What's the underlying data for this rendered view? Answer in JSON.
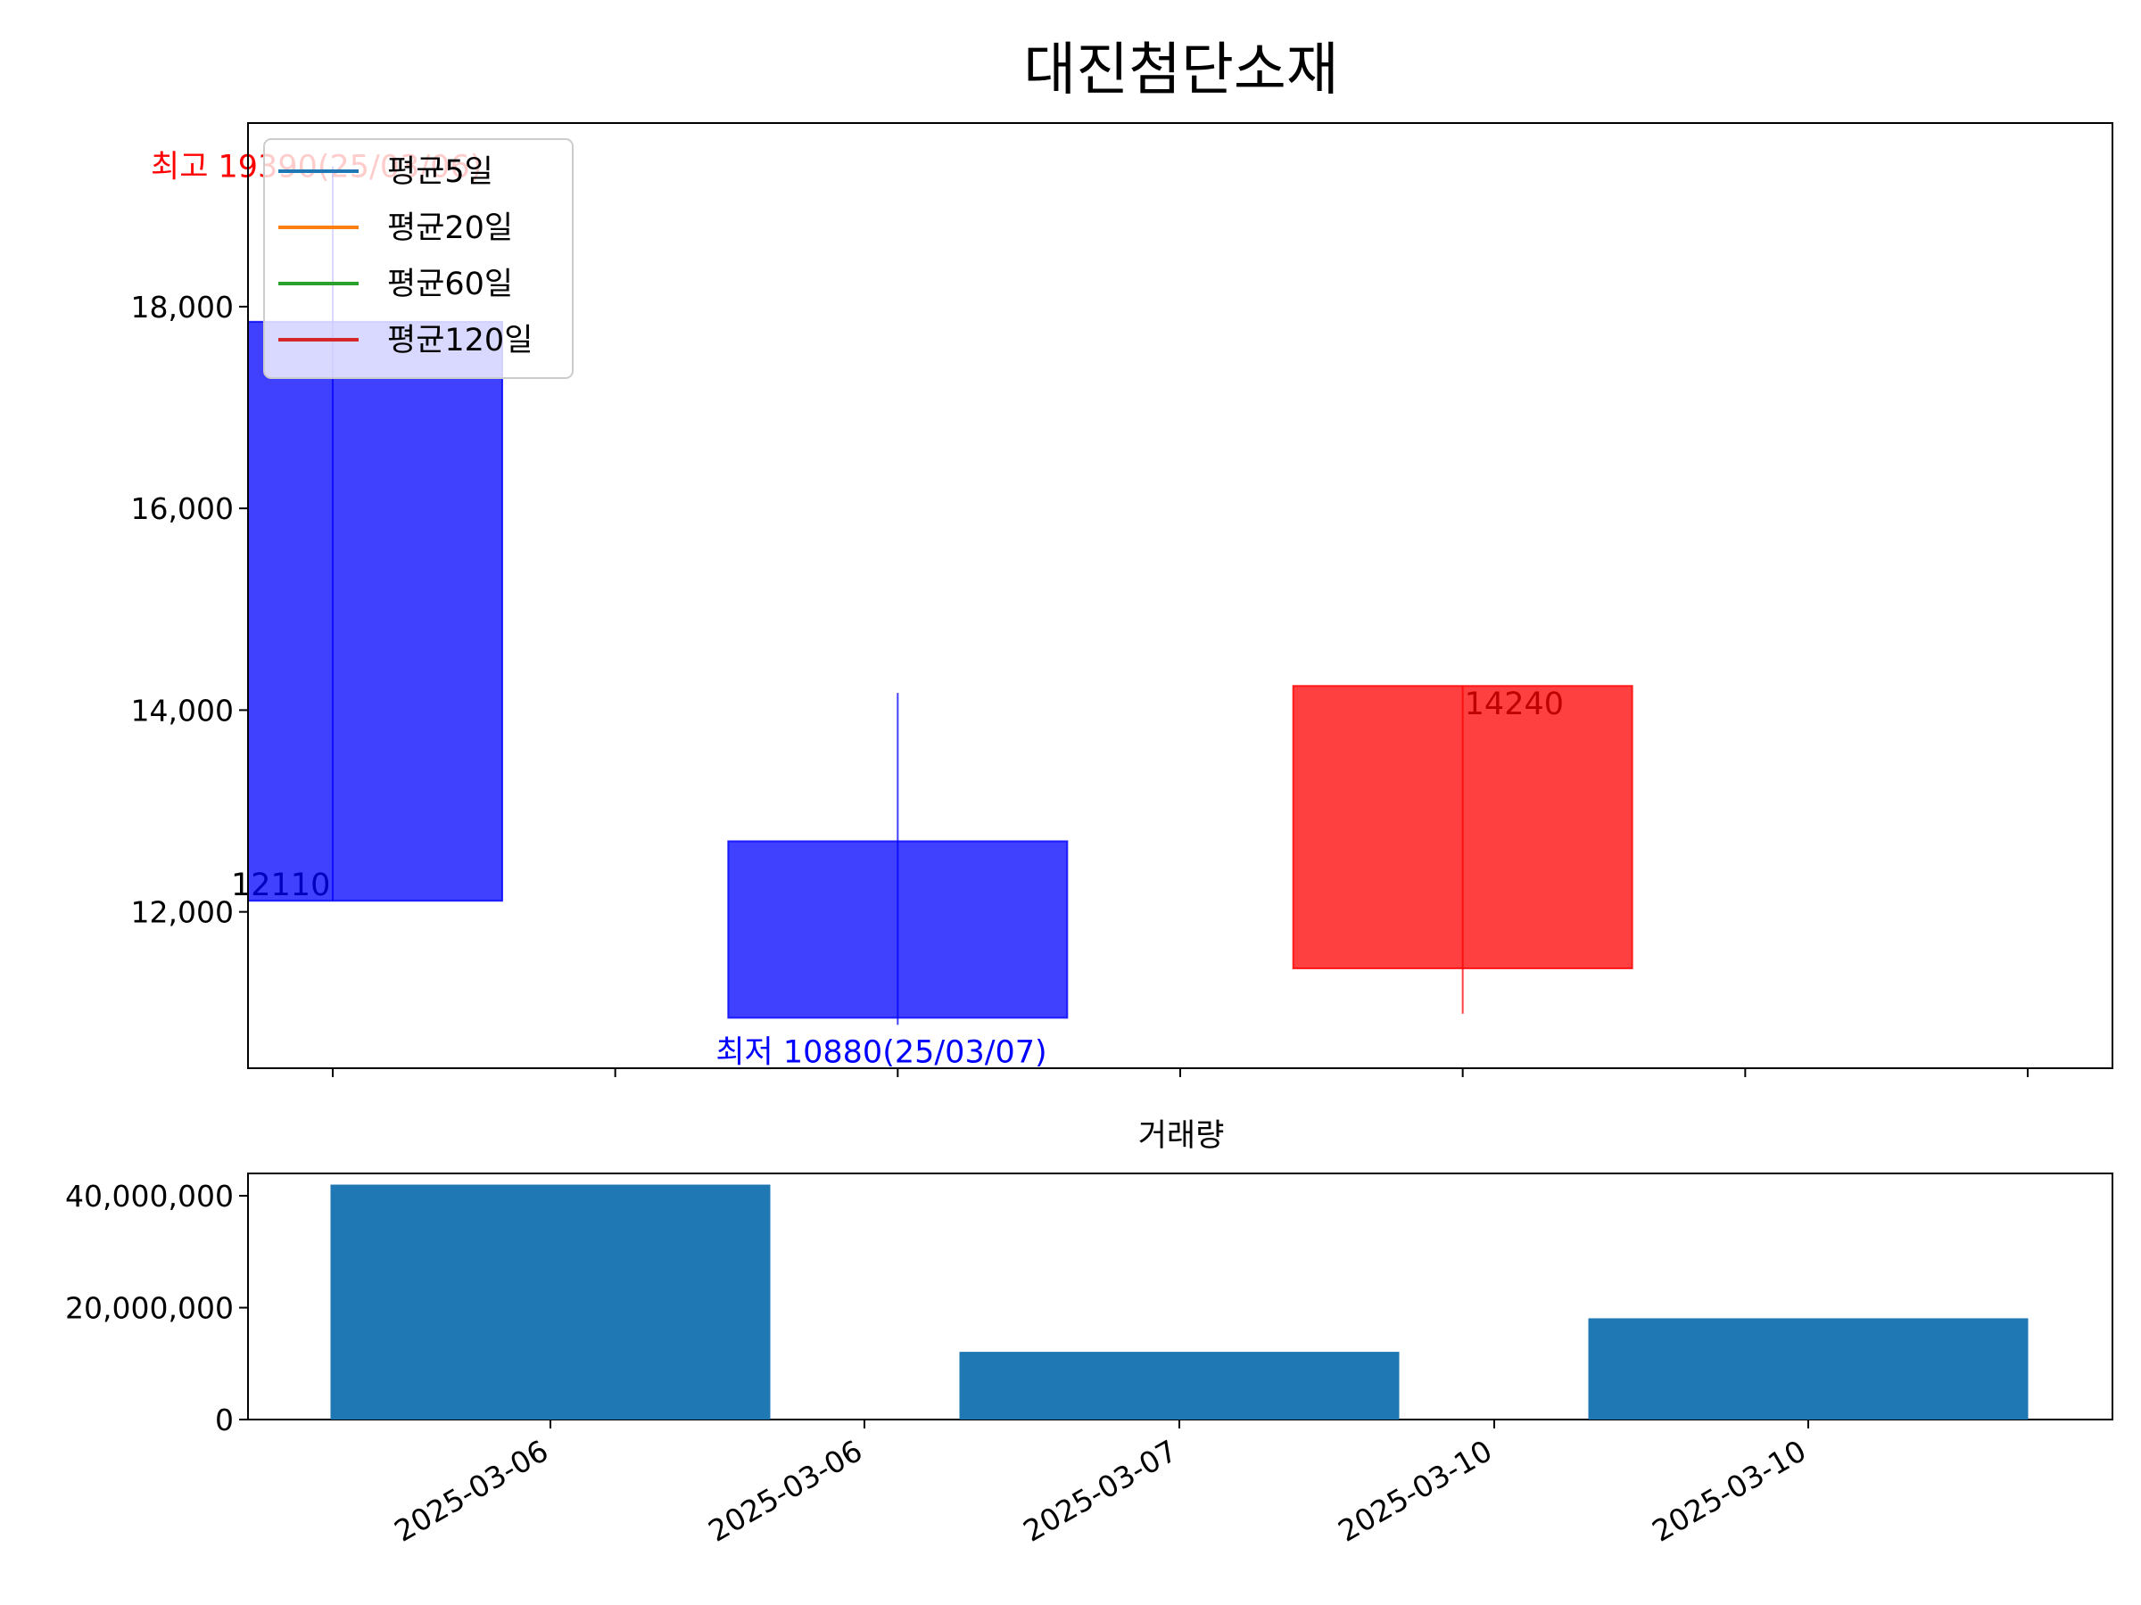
{
  "chart_data": [
    {
      "type": "candlestick",
      "title": "대진첨단소재",
      "y_ticks": [
        12000,
        14000,
        16000,
        18000
      ],
      "y_tick_labels": [
        "12,000",
        "14,000",
        "16,000",
        "18,000"
      ],
      "ylim": [
        10450,
        19820
      ],
      "xlim": [
        -0.3,
        6.3
      ],
      "grid": false,
      "legend_position": "top-left",
      "legend": [
        {
          "label": "평균5일",
          "color": "#1f77b4"
        },
        {
          "label": "평균20일",
          "color": "#ff7f0e"
        },
        {
          "label": "평균60일",
          "color": "#2ca02c"
        },
        {
          "label": "평균120일",
          "color": "#d62728"
        }
      ],
      "candles": [
        {
          "open": 17850,
          "close": 12110,
          "high": 19390,
          "low": 12110,
          "color": "#0000ff"
        },
        {
          "open": 12700,
          "close": 10950,
          "high": 14170,
          "low": 10880,
          "color": "#0000ff"
        },
        {
          "open": 11440,
          "close": 14240,
          "high": 14240,
          "low": 10990,
          "color": "#ff0000"
        }
      ],
      "annotations": {
        "high": {
          "text": "최고 19390(25/03/06)",
          "value": 19390,
          "color": "#ff0000"
        },
        "low": {
          "text": "최저 10880(25/03/07)",
          "value": 10880,
          "color": "#0000ff"
        },
        "close_labels": [
          {
            "text": "12110",
            "value": 12110
          },
          {
            "text": "14240",
            "value": 14240
          }
        ]
      }
    },
    {
      "type": "bar",
      "title": "거래량",
      "values": [
        42000000,
        12100000,
        18100000
      ],
      "color": "#1f77b4",
      "y_ticks": [
        0,
        20000000,
        40000000
      ],
      "y_tick_labels": [
        "0",
        "20,000,000",
        "40,000,000"
      ],
      "ylim": [
        0,
        44000000
      ],
      "x_tick_labels": [
        "2025-03-06",
        "2025-03-06",
        "2025-03-07",
        "2025-03-10",
        "2025-03-10"
      ]
    }
  ]
}
